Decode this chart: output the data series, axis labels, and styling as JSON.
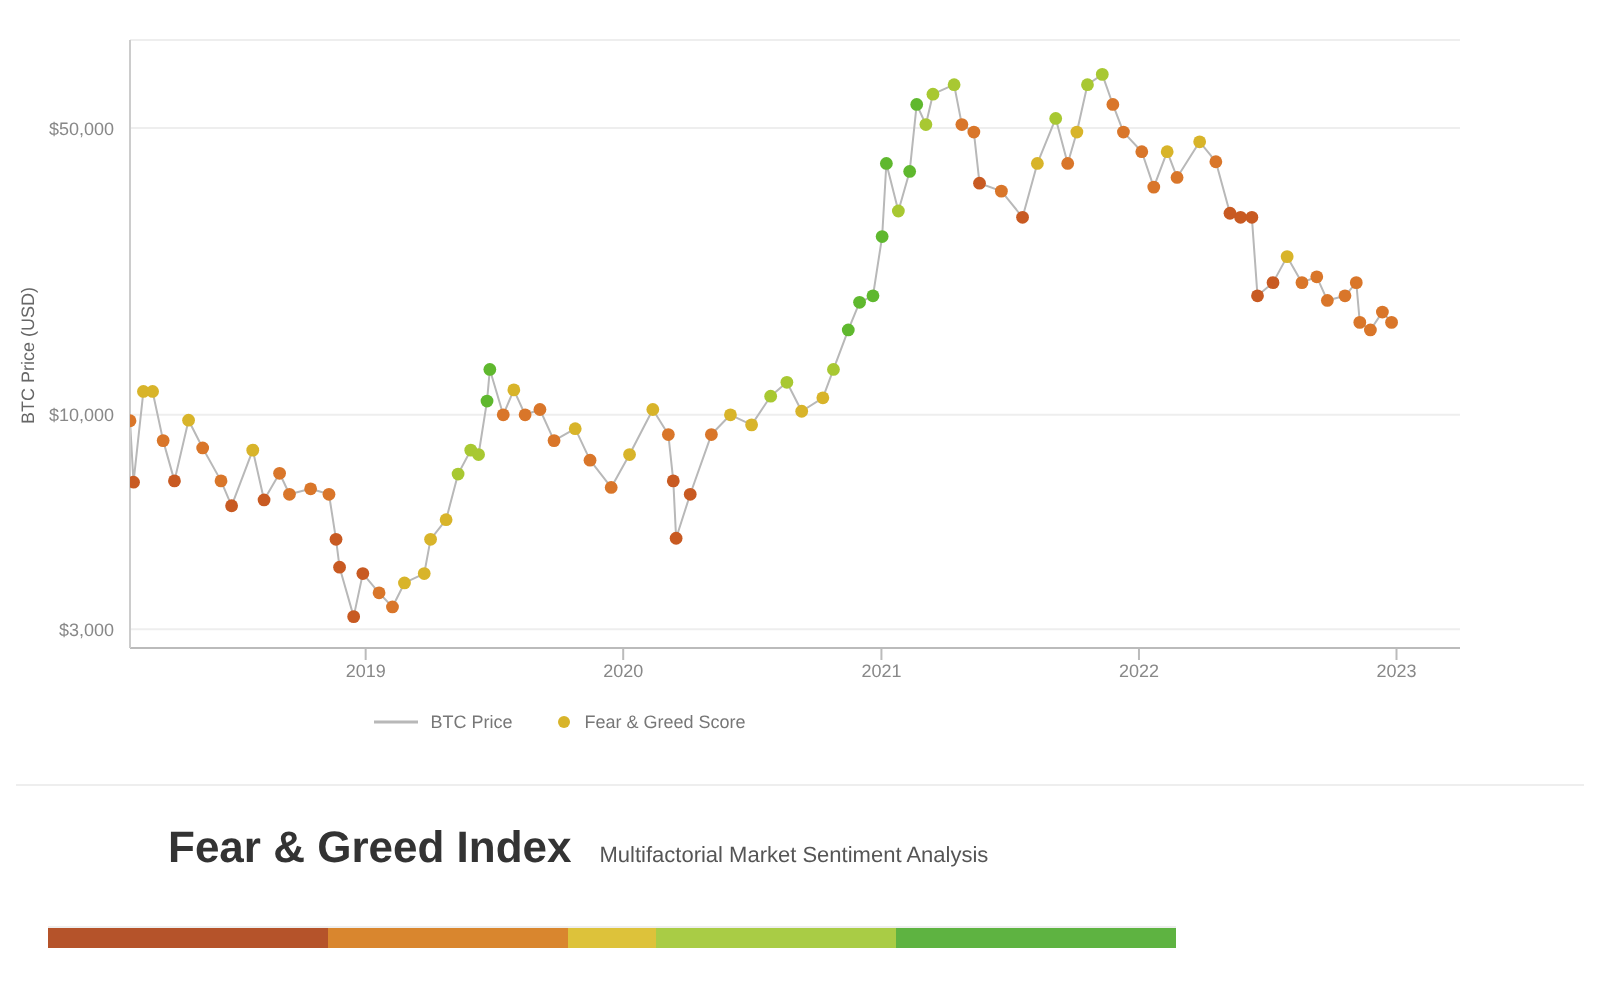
{
  "chart_data": {
    "type": "line",
    "ylabel": "BTC Price (USD)",
    "annotations": [
      "Fear & Greed Index",
      "Multifactorial Market Sentiment Analysis"
    ],
    "x": [
      "2018-02-01",
      "2018-02-06",
      "2018-02-20",
      "2018-03-05",
      "2018-03-20",
      "2018-04-05",
      "2018-04-25",
      "2018-05-15",
      "2018-06-10",
      "2018-06-25",
      "2018-07-25",
      "2018-08-10",
      "2018-09-01",
      "2018-09-15",
      "2018-10-15",
      "2018-11-10",
      "2018-11-20",
      "2018-11-25",
      "2018-12-15",
      "2018-12-28",
      "2019-01-20",
      "2019-02-08",
      "2019-02-25",
      "2019-03-25",
      "2019-04-03",
      "2019-04-25",
      "2019-05-12",
      "2019-05-30",
      "2019-06-10",
      "2019-06-22",
      "2019-06-26",
      "2019-07-15",
      "2019-07-30",
      "2019-08-15",
      "2019-09-05",
      "2019-09-25",
      "2019-10-25",
      "2019-11-15",
      "2019-12-15",
      "2020-01-10",
      "2020-02-12",
      "2020-03-05",
      "2020-03-12",
      "2020-03-16",
      "2020-04-05",
      "2020-05-05",
      "2020-06-01",
      "2020-07-01",
      "2020-07-28",
      "2020-08-20",
      "2020-09-10",
      "2020-10-10",
      "2020-10-25",
      "2020-11-15",
      "2020-12-01",
      "2020-12-20",
      "2021-01-02",
      "2021-01-08",
      "2021-01-25",
      "2021-02-10",
      "2021-02-20",
      "2021-03-05",
      "2021-03-15",
      "2021-04-14",
      "2021-04-25",
      "2021-05-12",
      "2021-05-20",
      "2021-06-20",
      "2021-07-20",
      "2021-08-10",
      "2021-09-05",
      "2021-09-22",
      "2021-10-05",
      "2021-10-20",
      "2021-11-10",
      "2021-11-25",
      "2021-12-10",
      "2022-01-05",
      "2022-01-22",
      "2022-02-10",
      "2022-02-24",
      "2022-03-28",
      "2022-04-20",
      "2022-05-10",
      "2022-05-25",
      "2022-06-10",
      "2022-06-18",
      "2022-07-10",
      "2022-07-30",
      "2022-08-20",
      "2022-09-10",
      "2022-09-25",
      "2022-10-20",
      "2022-11-05",
      "2022-11-10",
      "2022-11-25",
      "2022-12-12",
      "2022-12-25"
    ],
    "series": [
      {
        "name": "BTC Price",
        "color": "#b8b8b8",
        "marker": "none",
        "values": [
          9670,
          6850,
          11400,
          11400,
          8650,
          6900,
          9700,
          8300,
          6900,
          6000,
          8200,
          6200,
          7200,
          6400,
          6600,
          6400,
          4970,
          4250,
          3220,
          4100,
          3680,
          3400,
          3890,
          4100,
          4970,
          5550,
          7170,
          8200,
          8000,
          10800,
          12900,
          10000,
          11500,
          10000,
          10300,
          8650,
          9250,
          7750,
          6650,
          8000,
          10300,
          8950,
          6900,
          5000,
          6400,
          8950,
          10000,
          9450,
          11100,
          12000,
          10200,
          11000,
          12900,
          16100,
          18800,
          19500,
          27200,
          41000,
          31400,
          39200,
          57100,
          51000,
          60500,
          63800,
          51000,
          48900,
          36700,
          35100,
          30300,
          41000,
          52800,
          41000,
          48900,
          63800,
          67600,
          57100,
          48900,
          43800,
          35900,
          43800,
          37900,
          46300,
          41400,
          31000,
          30300,
          30300,
          19500,
          21000,
          24300,
          21000,
          21700,
          19000,
          19500,
          21000,
          16800,
          16100,
          17800,
          16800
        ]
      },
      {
        "name": "Fear & Greed Score",
        "type": "scatter",
        "color": "#d8b42a",
        "marker": "circle",
        "values": [
          9670,
          6850,
          11400,
          11400,
          8650,
          6900,
          9700,
          8300,
          6900,
          6000,
          8200,
          6200,
          7200,
          6400,
          6600,
          6400,
          4970,
          4250,
          3220,
          4100,
          3680,
          3400,
          3890,
          4100,
          4970,
          5550,
          7170,
          8200,
          8000,
          10800,
          12900,
          10000,
          11500,
          10000,
          10300,
          8650,
          9250,
          7750,
          6650,
          8000,
          10300,
          8950,
          6900,
          5000,
          6400,
          8950,
          10000,
          9450,
          11100,
          12000,
          10200,
          11000,
          12900,
          16100,
          18800,
          19500,
          27200,
          41000,
          31400,
          39200,
          57100,
          51000,
          60500,
          63800,
          51000,
          48900,
          36700,
          35100,
          30300,
          41000,
          52800,
          41000,
          48900,
          63800,
          67600,
          57100,
          48900,
          43800,
          35900,
          43800,
          37900,
          46300,
          41400,
          31000,
          30300,
          30300,
          19500,
          21000,
          24300,
          21000,
          21700,
          19000,
          19500,
          21000,
          16800,
          16100,
          17800,
          16800
        ],
        "colors": [
          "#d9762a",
          "#c85a22",
          "#d8b42a",
          "#d8b42a",
          "#d9762a",
          "#c85a22",
          "#d8b42a",
          "#d9762a",
          "#d9762a",
          "#c85a22",
          "#d8b42a",
          "#c85a22",
          "#d9762a",
          "#d9762a",
          "#d9762a",
          "#d9762a",
          "#c85a22",
          "#c85a22",
          "#c85a22",
          "#c85a22",
          "#d9762a",
          "#d9762a",
          "#d8b42a",
          "#d8b42a",
          "#d8b42a",
          "#d8b42a",
          "#a8c832",
          "#a8c832",
          "#a8c832",
          "#5fb82e",
          "#5fb82e",
          "#d9762a",
          "#d8b42a",
          "#d9762a",
          "#d9762a",
          "#d9762a",
          "#d8b42a",
          "#d9762a",
          "#d9762a",
          "#d8b42a",
          "#d8b42a",
          "#d9762a",
          "#c85a22",
          "#c85a22",
          "#c85a22",
          "#d9762a",
          "#d8b42a",
          "#d8b42a",
          "#a8c832",
          "#a8c832",
          "#d8b42a",
          "#d8b42a",
          "#a8c832",
          "#5fb82e",
          "#5fb82e",
          "#5fb82e",
          "#5fb82e",
          "#5fb82e",
          "#a8c832",
          "#5fb82e",
          "#5fb82e",
          "#a8c832",
          "#a8c832",
          "#a8c832",
          "#d9762a",
          "#d9762a",
          "#c85a22",
          "#d9762a",
          "#c85a22",
          "#d8b42a",
          "#a8c832",
          "#d9762a",
          "#d8b42a",
          "#a8c832",
          "#a8c832",
          "#d9762a",
          "#d9762a",
          "#d9762a",
          "#d9762a",
          "#d8b42a",
          "#d9762a",
          "#d8b42a",
          "#d9762a",
          "#c85a22",
          "#c85a22",
          "#c85a22",
          "#c85a22",
          "#c85a22",
          "#d8b42a",
          "#d9762a",
          "#d9762a",
          "#d9762a",
          "#d9762a",
          "#d9762a",
          "#d9762a",
          "#d9762a",
          "#d9762a",
          "#d9762a"
        ]
      }
    ],
    "log": "y",
    "xlim": [
      "2018-02-01",
      "2023-04-01"
    ],
    "xticks": [
      {
        "value": "2019-01-01",
        "label": "2019"
      },
      {
        "value": "2020-01-01",
        "label": "2020"
      },
      {
        "value": "2021-01-01",
        "label": "2021"
      },
      {
        "value": "2022-01-01",
        "label": "2022"
      },
      {
        "value": "2023-01-01",
        "label": "2023"
      }
    ],
    "ylim": [
      2700,
      82000
    ],
    "yticks": [
      {
        "value": 3000,
        "label": "$3,000"
      },
      {
        "value": 10000,
        "label": "$10,000"
      },
      {
        "value": 50000,
        "label": "$50,000"
      }
    ],
    "grid": "y",
    "legend": "bottom"
  }
}
